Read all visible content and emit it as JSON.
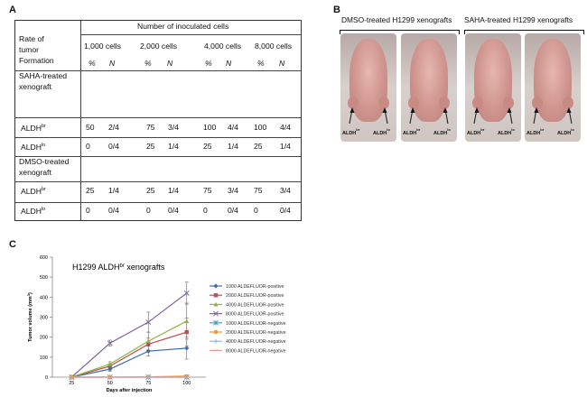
{
  "panels": {
    "a": "A",
    "b": "B",
    "c": "C"
  },
  "table": {
    "group_header": "Number of inoculated cells",
    "row_header": [
      "Rate of",
      "tumor",
      "Formation"
    ],
    "columns": [
      "1,000 cells",
      "2,000 cells",
      "4,000 cells",
      "8,000 cells"
    ],
    "pct": "%",
    "n": "N",
    "sections": [
      {
        "title": [
          "SAHA-treated",
          "xenograft"
        ],
        "rows": [
          {
            "label": "ALDH",
            "sup": "br",
            "values": [
              "50",
              "2/4",
              "75",
              "3/4",
              "100",
              "4/4",
              "100",
              "4/4"
            ]
          },
          {
            "label": "ALDH",
            "sup": "lo",
            "values": [
              "0",
              "0/4",
              "25",
              "1/4",
              "25",
              "1/4",
              "25",
              "1/4"
            ]
          }
        ]
      },
      {
        "title": [
          "DMSO-treated",
          "xenograft"
        ],
        "rows": [
          {
            "label": "ALDH",
            "sup": "br",
            "values": [
              "25",
              "1/4",
              "25",
              "1/4",
              "75",
              "3/4",
              "75",
              "3/4"
            ]
          },
          {
            "label": "ALDH",
            "sup": "lo",
            "values": [
              "0",
              "0/4",
              "0",
              "0/4",
              "0",
              "0/4",
              "0",
              "0/4"
            ]
          }
        ]
      }
    ]
  },
  "photos": {
    "dmso_caption": "DMSO-treated H1299 xenografts",
    "saha_caption": "SAHA-treated H1299 xenografts",
    "left_label": "ALDH",
    "left_sup": "br",
    "right_label": "ALDH",
    "right_sup": "lo"
  },
  "chart_data": {
    "type": "line",
    "title": "H1299 ALDH",
    "title_sup": "br",
    "title_suffix": " xenografts",
    "xlabel": "Days after injection",
    "ylabel": "Tumor volume (mm",
    "ylabel_sup": "3",
    "ylabel_end": ")",
    "x": [
      25,
      50,
      75,
      100
    ],
    "ylim": [
      0,
      600
    ],
    "yticks": [
      0,
      100,
      200,
      300,
      400,
      500,
      600
    ],
    "legend_position": "right",
    "series": [
      {
        "name": "1000 ALDEFLUOR-positive",
        "color": "#3f6fb0",
        "marker": "diamond",
        "values": [
          0,
          40,
          130,
          145
        ],
        "err": [
          0,
          10,
          25,
          55
        ]
      },
      {
        "name": "2000 ALDEFLUOR-positive",
        "color": "#c0504d",
        "marker": "square",
        "values": [
          0,
          55,
          165,
          225
        ],
        "err": [
          0,
          12,
          30,
          70
        ]
      },
      {
        "name": "4000 ALDEFLUOR-positive",
        "color": "#8db443",
        "marker": "triangle",
        "values": [
          0,
          65,
          180,
          280
        ],
        "err": [
          0,
          12,
          45,
          90
        ]
      },
      {
        "name": "8000 ALDEFLUOR-positive",
        "color": "#7f63a5",
        "marker": "x",
        "values": [
          0,
          170,
          275,
          420
        ],
        "err": [
          0,
          15,
          50,
          55
        ]
      },
      {
        "name": "1000 ALDEFLUOR-negative",
        "color": "#39a8c8",
        "marker": "star",
        "values": [
          0,
          0,
          0,
          0
        ],
        "err": [
          0,
          0,
          0,
          0
        ]
      },
      {
        "name": "2000 ALDEFLUOR-negative",
        "color": "#f0913b",
        "marker": "circle",
        "values": [
          0,
          0,
          2,
          5
        ],
        "err": [
          0,
          0,
          0,
          0
        ]
      },
      {
        "name": "4000 ALDEFLUOR-negative",
        "color": "#9ab3d6",
        "marker": "plus",
        "values": [
          0,
          0,
          0,
          0
        ],
        "err": [
          0,
          0,
          0,
          0
        ]
      },
      {
        "name": "8000 ALDEFLUOR-negative",
        "color": "#e79a98",
        "marker": "dash",
        "values": [
          0,
          0,
          0,
          0
        ],
        "err": [
          0,
          0,
          0,
          0
        ]
      }
    ]
  }
}
